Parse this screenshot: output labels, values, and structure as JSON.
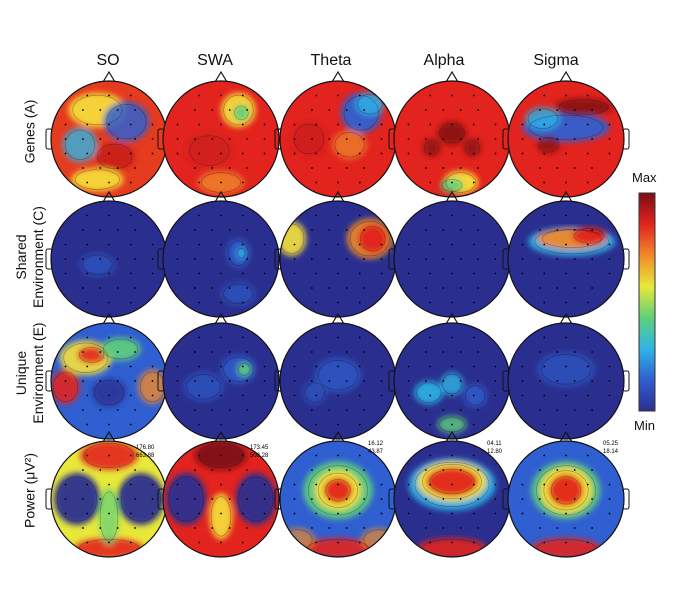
{
  "columns": [
    "SO",
    "SWA",
    "Theta",
    "Alpha",
    "Sigma"
  ],
  "rows": [
    {
      "id": "genes",
      "lines": [
        "Genes (A)"
      ]
    },
    {
      "id": "shared",
      "lines": [
        "Shared",
        "Environment (C)"
      ]
    },
    {
      "id": "unique",
      "lines": [
        "Unique",
        "Environment (E)"
      ]
    },
    {
      "id": "power",
      "lines": [
        "Power (μV²)"
      ]
    }
  ],
  "power_ranges": [
    {
      "max": "176.80",
      "min": "663.88"
    },
    {
      "max": "173.45",
      "min": "502.28"
    },
    {
      "max": "16.12",
      "min": "43.87"
    },
    {
      "max": "04.11",
      "min": "12.80"
    },
    {
      "max": "05.25",
      "min": "18.14"
    }
  ],
  "colorbar": {
    "max_label": "Max",
    "min_label": "Min",
    "stops": [
      "#2a2f8f",
      "#2f5fd0",
      "#2fb4e6",
      "#5fd07a",
      "#e8e83a",
      "#f08a2a",
      "#e2231e",
      "#7a0e14"
    ]
  }
}
